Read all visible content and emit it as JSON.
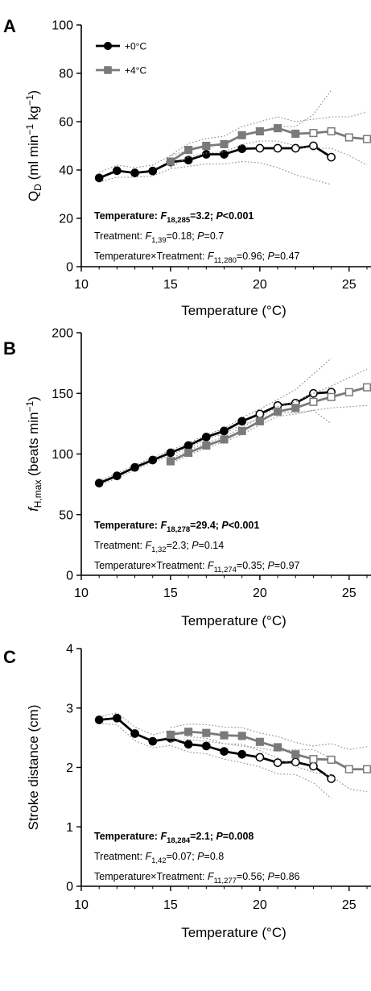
{
  "colors": {
    "series_0": "#000000",
    "series_4": "#7a7a7a",
    "ci": "#8a8a8a"
  },
  "legend": [
    {
      "label": "+0°C",
      "marker": "circle",
      "color": "#000000"
    },
    {
      "label": "+4°C",
      "marker": "square",
      "color": "#7a7a7a"
    }
  ],
  "chart_data": [
    {
      "type": "line",
      "panel": "A",
      "ylabel": "QD (ml min−1 kg−1)",
      "xlabel": "Temperature (°C)",
      "xlim": [
        10,
        26
      ],
      "ylim": [
        0,
        100
      ],
      "xticks": [
        10,
        15,
        20,
        25
      ],
      "yticks": [
        0,
        20,
        40,
        60,
        80,
        100
      ],
      "series": [
        {
          "name": "+0°C",
          "x": [
            11,
            12,
            13,
            14,
            15,
            16,
            17,
            18,
            19,
            20,
            21,
            22,
            23,
            24
          ],
          "y": [
            36.7,
            39.7,
            38.8,
            39.6,
            43.3,
            44.1,
            46.5,
            46.5,
            48.8,
            49.0,
            49.0,
            49.0,
            50.0,
            45.3
          ],
          "filled": [
            true,
            true,
            true,
            true,
            true,
            true,
            true,
            true,
            true,
            false,
            false,
            false,
            false,
            false
          ],
          "ci_upper": [
            39,
            42,
            41,
            42,
            46,
            48,
            50,
            51,
            54,
            56,
            58,
            58,
            63,
            73
          ],
          "ci_lower": [
            35,
            37,
            37,
            37.5,
            40.5,
            41.5,
            42.5,
            42.5,
            43.5,
            43,
            41,
            38,
            36,
            34
          ]
        },
        {
          "name": "+4°C",
          "x": [
            15,
            16,
            17,
            18,
            19,
            20,
            21,
            22,
            23,
            24,
            25,
            26
          ],
          "y": [
            43.5,
            48.3,
            50.0,
            50.7,
            54.4,
            56.0,
            57.3,
            55.0,
            55.3,
            56.0,
            53.5,
            52.8
          ],
          "filled": [
            true,
            true,
            true,
            true,
            true,
            true,
            true,
            true,
            false,
            false,
            false,
            false
          ],
          "ci_upper": [
            46,
            51,
            53,
            54,
            58,
            60,
            62,
            60,
            61,
            62,
            62,
            64
          ],
          "ci_lower": [
            41,
            45.5,
            47,
            47.5,
            50.5,
            52,
            52,
            50,
            49,
            49,
            46,
            42
          ]
        }
      ],
      "annotations": [
        {
          "bold": true,
          "text": "Temperature: F18,285=3.2; P<0.001"
        },
        {
          "bold": false,
          "text": "Treatment: F1,39=0.18; P=0.7"
        },
        {
          "bold": false,
          "text": "Temperature×Treatment: F11,280=0.96; P=0.47"
        }
      ]
    },
    {
      "type": "line",
      "panel": "B",
      "ylabel": "fH,max (beats min−1)",
      "xlabel": "Temperature (°C)",
      "xlim": [
        10,
        26
      ],
      "ylim": [
        0,
        200
      ],
      "xticks": [
        10,
        15,
        20,
        25
      ],
      "yticks": [
        0,
        50,
        100,
        150,
        200
      ],
      "series": [
        {
          "name": "+0°C",
          "x": [
            11,
            12,
            13,
            14,
            15,
            16,
            17,
            18,
            19,
            20,
            21,
            22,
            23,
            24
          ],
          "y": [
            76,
            82,
            89,
            95,
            101,
            107,
            114,
            119,
            127,
            133,
            140,
            142,
            150,
            151
          ],
          "filled": [
            true,
            true,
            true,
            true,
            true,
            true,
            true,
            true,
            true,
            false,
            false,
            false,
            false,
            false
          ],
          "ci_upper": [
            78,
            84,
            91,
            97,
            103,
            109,
            116,
            121,
            130,
            137,
            145,
            153,
            166,
            179
          ],
          "ci_lower": [
            74,
            80,
            87,
            93,
            99,
            105,
            112,
            117,
            124,
            129,
            134,
            134,
            136,
            125
          ]
        },
        {
          "name": "+4°C",
          "x": [
            15,
            16,
            17,
            18,
            19,
            20,
            21,
            22,
            23,
            24,
            25,
            26
          ],
          "y": [
            94,
            101,
            107,
            112,
            119,
            127,
            135,
            138,
            143,
            147,
            151,
            155
          ],
          "filled": [
            true,
            true,
            true,
            true,
            true,
            true,
            true,
            true,
            false,
            false,
            false,
            false
          ],
          "ci_upper": [
            96,
            103,
            109,
            114,
            122,
            130,
            139,
            143,
            150,
            156,
            163,
            170
          ],
          "ci_lower": [
            92,
            99,
            105,
            110,
            116,
            124,
            131,
            133,
            136,
            138,
            139,
            140
          ]
        }
      ],
      "annotations": [
        {
          "bold": true,
          "text": "Temperature: F18,278=29.4; P<0.001"
        },
        {
          "bold": false,
          "text": "Treatment: F1,32=2.3; P=0.14"
        },
        {
          "bold": false,
          "text": "Temperature×Treatment: F11,274=0.35; P=0.97"
        }
      ]
    },
    {
      "type": "line",
      "panel": "C",
      "ylabel": "Stroke distance (cm)",
      "xlabel": "Temperature (°C)",
      "xlim": [
        10,
        26
      ],
      "ylim": [
        0,
        4
      ],
      "xticks": [
        10,
        15,
        20,
        25
      ],
      "yticks": [
        0,
        1,
        2,
        3,
        4
      ],
      "series": [
        {
          "name": "+0°C",
          "x": [
            11,
            12,
            13,
            14,
            15,
            16,
            17,
            18,
            19,
            20,
            21,
            22,
            23,
            24
          ],
          "y": [
            2.8,
            2.83,
            2.57,
            2.44,
            2.49,
            2.39,
            2.36,
            2.27,
            2.22,
            2.17,
            2.08,
            2.09,
            2.02,
            1.81
          ],
          "filled": [
            true,
            true,
            true,
            true,
            true,
            true,
            true,
            true,
            true,
            false,
            false,
            false,
            false,
            false
          ],
          "ci_upper": [
            2.85,
            2.92,
            2.68,
            2.55,
            2.62,
            2.52,
            2.49,
            2.4,
            2.36,
            2.33,
            2.27,
            2.3,
            2.3,
            2.15
          ],
          "ci_lower": [
            2.74,
            2.72,
            2.45,
            2.33,
            2.37,
            2.26,
            2.23,
            2.14,
            2.08,
            2.01,
            1.89,
            1.88,
            1.74,
            1.48
          ]
        },
        {
          "name": "+4°C",
          "x": [
            15,
            16,
            17,
            18,
            19,
            20,
            21,
            22,
            23,
            24,
            25,
            26
          ],
          "y": [
            2.55,
            2.6,
            2.58,
            2.54,
            2.53,
            2.43,
            2.34,
            2.22,
            2.14,
            2.13,
            1.97,
            1.97
          ],
          "filled": [
            true,
            true,
            true,
            true,
            true,
            true,
            true,
            true,
            false,
            false,
            false,
            false
          ],
          "ci_upper": [
            2.67,
            2.73,
            2.72,
            2.68,
            2.67,
            2.58,
            2.52,
            2.42,
            2.36,
            2.4,
            2.3,
            2.35
          ],
          "ci_lower": [
            2.43,
            2.47,
            2.44,
            2.4,
            2.39,
            2.28,
            2.16,
            2.02,
            1.92,
            1.86,
            1.64,
            1.59
          ]
        }
      ],
      "annotations": [
        {
          "bold": true,
          "text": "Temperature: F18,284=2.1; P=0.008"
        },
        {
          "bold": false,
          "text": "Treatment: F1,42=0.07; P=0.8"
        },
        {
          "bold": false,
          "text": "Temperature×Treatment: F11,277=0.56; P=0.86"
        }
      ]
    }
  ]
}
